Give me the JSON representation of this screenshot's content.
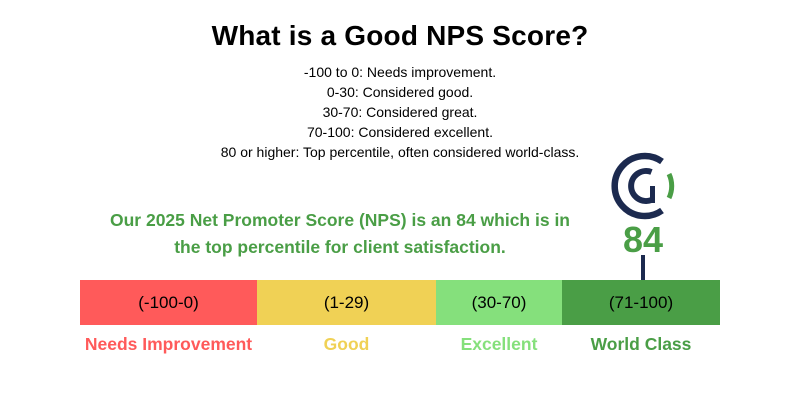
{
  "title": "What is a Good NPS Score?",
  "criteria": [
    "-100 to 0: Needs improvement.",
    "0-30: Considered good.",
    "30-70: Considered great.",
    "70-100: Considered excellent.",
    "80 or higher: Top percentile, often considered world-class."
  ],
  "statement": {
    "line1": "Our 2025 Net Promoter Score (NPS) is an 84 which is in",
    "line2": "the top percentile for client satisfaction."
  },
  "score": "84",
  "logo_icon": "company-g-logo-icon",
  "colors": {
    "needs_improvement": "#ff5a5a",
    "good": "#f0d155",
    "excellent": "#85e07c",
    "world_class": "#4a9e46",
    "navy": "#1c2a4f"
  },
  "segments": [
    {
      "range": "(-100-0)",
      "label": "Needs Improvement"
    },
    {
      "range": "(1-29)",
      "label": "Good"
    },
    {
      "range": "(30-70)",
      "label": "Excellent"
    },
    {
      "range": "(71-100)",
      "label": "World Class"
    }
  ]
}
